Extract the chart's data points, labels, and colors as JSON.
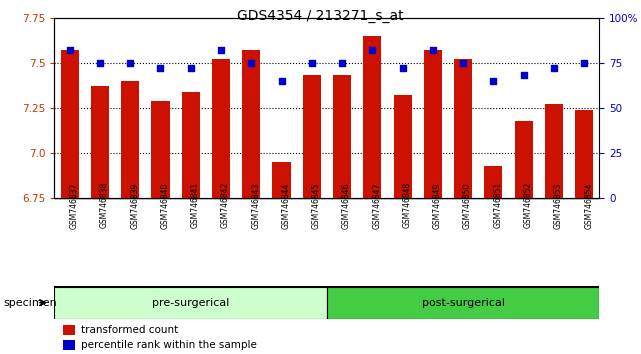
{
  "title": "GDS4354 / 213271_s_at",
  "samples": [
    "GSM746837",
    "GSM746838",
    "GSM746839",
    "GSM746840",
    "GSM746841",
    "GSM746842",
    "GSM746843",
    "GSM746844",
    "GSM746845",
    "GSM746846",
    "GSM746847",
    "GSM746848",
    "GSM746849",
    "GSM746850",
    "GSM746851",
    "GSM746852",
    "GSM746853",
    "GSM746854"
  ],
  "red_values": [
    7.57,
    7.37,
    7.4,
    7.29,
    7.34,
    7.52,
    7.57,
    6.95,
    7.43,
    7.43,
    7.65,
    7.32,
    7.57,
    7.52,
    6.93,
    7.18,
    7.27,
    7.24
  ],
  "blue_values": [
    82,
    75,
    75,
    72,
    72,
    82,
    75,
    65,
    75,
    75,
    82,
    72,
    82,
    75,
    65,
    68,
    72,
    75
  ],
  "ylim_left": [
    6.75,
    7.75
  ],
  "ylim_right": [
    0,
    100
  ],
  "yticks_left": [
    6.75,
    7.0,
    7.25,
    7.5,
    7.75
  ],
  "yticks_right": [
    0,
    25,
    50,
    75,
    100
  ],
  "bar_color": "#cc1100",
  "dot_color": "#0000cc",
  "bar_width": 0.6,
  "bg_color": "#ffffff",
  "plot_bg": "#ffffff",
  "tick_bg": "#cccccc",
  "legend_labels": [
    "transformed count",
    "percentile rank within the sample"
  ],
  "specimen_label": "specimen",
  "pre_label": "pre-surgerical",
  "post_label": "post-surgerical",
  "pre_color": "#ccffcc",
  "post_color": "#44cc44",
  "pre_count": 9,
  "post_count": 9,
  "left_ytick_color": "#cc3300",
  "right_ytick_color": "#0000cc"
}
